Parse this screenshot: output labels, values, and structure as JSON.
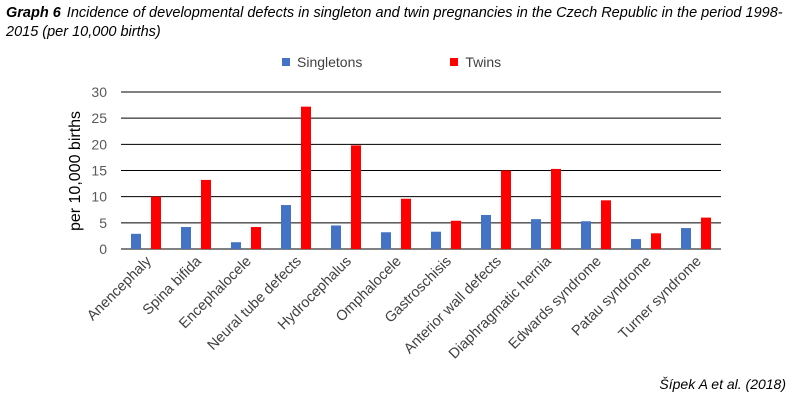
{
  "title": {
    "lead": "Graph 6",
    "text": "Incidence of developmental defects in singleton and twin pregnancies in the Czech Republic in the period 1998-2015 (per 10,000 births)"
  },
  "source": "Šípek A et al. (2018)",
  "chart_data": {
    "type": "bar",
    "categories": [
      "Anencephaly",
      "Spina bifida",
      "Encephalocele",
      "Neural tube defects",
      "Hydrocephalus",
      "Omphalocele",
      "Gastroschisis",
      "Anterior wall defects",
      "Diaphragmatic hernia",
      "Edwards syndrome",
      "Patau syndrome",
      "Turner syndrome"
    ],
    "series": [
      {
        "name": "Singletons",
        "color": "#4472c4",
        "values": [
          2.9,
          4.2,
          1.3,
          8.4,
          4.5,
          3.2,
          3.3,
          6.5,
          5.7,
          5.3,
          1.9,
          4.0
        ]
      },
      {
        "name": "Twins",
        "color": "#ff0000",
        "values": [
          10.0,
          13.2,
          4.2,
          27.2,
          19.8,
          9.6,
          5.4,
          15.0,
          15.3,
          9.3,
          3.0,
          6.0
        ]
      }
    ],
    "ylabel": "per 10,000 births",
    "xlabel": "",
    "ylim": [
      0,
      30
    ],
    "yticks": [
      0,
      5,
      10,
      15,
      20,
      25,
      30
    ],
    "grid": true,
    "legend_position": "top"
  }
}
